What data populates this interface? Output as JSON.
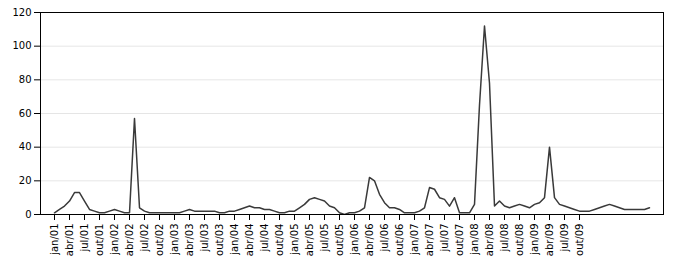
{
  "chart_data": {
    "type": "line",
    "categories": [
      "jan/01",
      null,
      null,
      "abr/01",
      null,
      null,
      "jul/01",
      null,
      null,
      "out/01",
      null,
      null,
      "jan/02",
      null,
      null,
      "abr/02",
      null,
      null,
      "jul/02",
      null,
      null,
      "out/02",
      null,
      null,
      "jan/03",
      null,
      null,
      "abr/03",
      null,
      null,
      "jul/03",
      null,
      null,
      "out/03",
      null,
      null,
      "jan/04",
      null,
      null,
      "abr/04",
      null,
      null,
      "jul/04",
      null,
      null,
      "out/04",
      null,
      null,
      "jan/05",
      null,
      null,
      "abr/05",
      null,
      null,
      "jul/05",
      null,
      null,
      "out/05",
      null,
      null,
      "jan/06",
      null,
      null,
      "abr/06",
      null,
      null,
      "jul/06",
      null,
      null,
      "out/06",
      null,
      null,
      "jan/07",
      null,
      null,
      "abr/07",
      null,
      null,
      "jul/07",
      null,
      null,
      "out/07",
      null,
      null,
      "jan/08",
      null,
      null,
      "abr/08",
      null,
      null,
      "jul/08",
      null,
      null,
      "out/08",
      null,
      null,
      "jan/09",
      null,
      null,
      "abr/09",
      null,
      null,
      "jul/09",
      null,
      null,
      "out/09",
      null,
      null,
      null,
      null,
      null,
      null,
      null,
      null,
      null,
      null,
      null,
      null,
      null,
      null
    ],
    "values": [
      1,
      3,
      5,
      8,
      13,
      13,
      8,
      3,
      2,
      1,
      1,
      2,
      3,
      2,
      1,
      1,
      57,
      4,
      2,
      1,
      1,
      1,
      1,
      1,
      1,
      1,
      2,
      3,
      2,
      2,
      2,
      2,
      2,
      1,
      1,
      2,
      2,
      3,
      4,
      5,
      4,
      4,
      3,
      3,
      2,
      1,
      1,
      2,
      2,
      4,
      6,
      9,
      10,
      9,
      8,
      5,
      4,
      1,
      0,
      1,
      1,
      2,
      4,
      22,
      20,
      12,
      7,
      4,
      4,
      3,
      1,
      1,
      1,
      2,
      4,
      16,
      15,
      10,
      9,
      5,
      10,
      1,
      1,
      1,
      6,
      65,
      112,
      78,
      5,
      8,
      5,
      4,
      5,
      6,
      5,
      4,
      6,
      7,
      10,
      40,
      10,
      6,
      5,
      4,
      3,
      2,
      2,
      2,
      3,
      4,
      5,
      6,
      5,
      4,
      3,
      3,
      3,
      3,
      3,
      4
    ],
    "color": "#3a3a3a",
    "ylim": [
      0,
      120
    ],
    "yticks": [
      0,
      20,
      40,
      60,
      80,
      100,
      120
    ],
    "grid": true
  }
}
